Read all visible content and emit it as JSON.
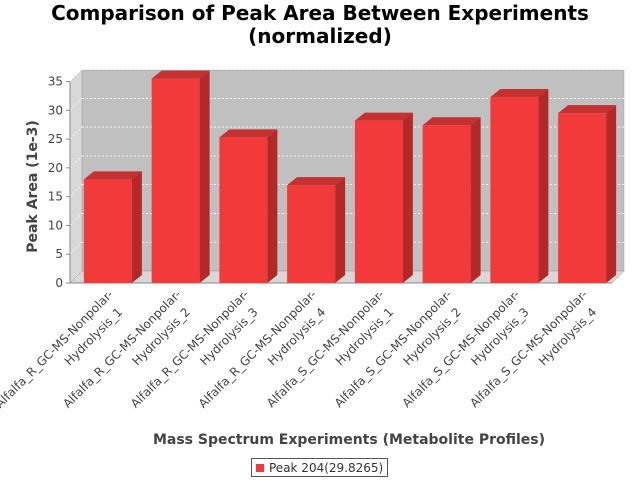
{
  "chart_data": {
    "type": "bar",
    "title_lines": [
      "Comparison of Peak Area Between Experiments",
      "(normalized)"
    ],
    "xlabel": "Mass Spectrum Experiments (Metabolite Profiles)",
    "ylabel": "Peak Area (1e-3)",
    "ylim": [
      0,
      37
    ],
    "yticks": [
      0,
      5,
      10,
      15,
      20,
      25,
      30,
      35
    ],
    "grid": true,
    "legend_position": "bottom",
    "colors": {
      "bar": "#f23a3a",
      "bar_top": "#c53030",
      "bar_side": "#b52828",
      "plot_bg": "#c0c0c0",
      "plot_side": "#d8d8d8"
    },
    "categories": [
      [
        "Alfalfa_R_GC-MS-Nonpolar-",
        "Hydrolysis_1"
      ],
      [
        "Alfalfa_R_GC-MS-Nonpolar-",
        "Hydrolysis_2"
      ],
      [
        "Alfalfa_R_GC-MS-Nonpolar-",
        "Hydrolysis_3"
      ],
      [
        "Alfalfa_R_GC-MS-Nonpolar-",
        "Hydrolysis_4"
      ],
      [
        "Alfalfa_S_GC-MS-Nonpolar-",
        "Hydrolysis_1"
      ],
      [
        "Alfalfa_S_GC-MS-Nonpolar-",
        "Hydrolysis_2"
      ],
      [
        "Alfalfa_S_GC-MS-Nonpolar-",
        "Hydrolysis_3"
      ],
      [
        "Alfalfa_S_GC-MS-Nonpolar-",
        "Hydrolysis_4"
      ]
    ],
    "series": [
      {
        "name": "Peak 204(29.8265)",
        "values": [
          18.0,
          35.5,
          25.3,
          17.0,
          28.2,
          27.4,
          32.3,
          29.5
        ]
      }
    ]
  }
}
